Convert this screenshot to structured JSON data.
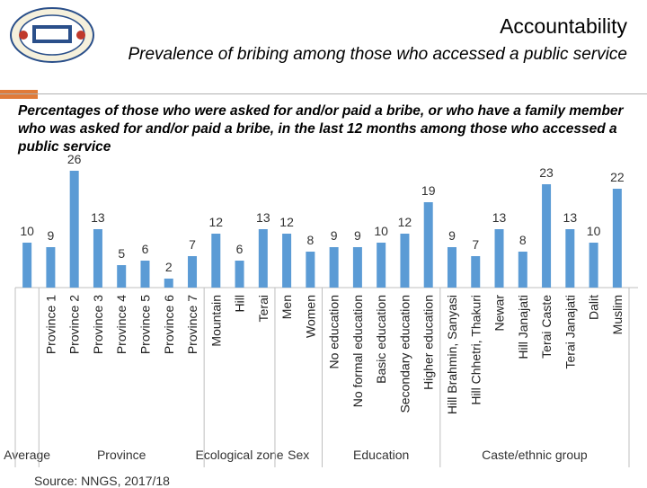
{
  "header": {
    "title": "Accountability",
    "subtitle": "Prevalence of bribing among those who accessed a public service"
  },
  "chart_caption": "Percentages of those who were asked for and/or paid a bribe, or who have a family member who was asked for and/or paid a bribe, in the last 12 months among those who accessed a public service",
  "source": "Source: NNGS, 2017/18",
  "colors": {
    "bar": "#5b9bd5",
    "accent": "#e07b39",
    "grid": "#bfbfbf"
  },
  "chart_data": {
    "type": "bar",
    "ylim": [
      0,
      30
    ],
    "categories": [
      "Average",
      "Province 1",
      "Province 2",
      "Province 3",
      "Province 4",
      "Province 5",
      "Province 6",
      "Province 7",
      "Mountain",
      "Hill",
      "Terai",
      "Men",
      "Women",
      "No education",
      "No formal education",
      "Basic education",
      "Secondary education",
      "Higher education",
      "Hill Brahmin, Sanyasi",
      "Hill Chhetri, Thakuri",
      "Newar",
      "Hill Janajati",
      "Terai Caste",
      "Terai Janajati",
      "Dalit",
      "Muslim"
    ],
    "series": [
      {
        "values": [
          10,
          9,
          26,
          13,
          5,
          6,
          2,
          7,
          12,
          6,
          13,
          12,
          8,
          9,
          9,
          10,
          12,
          19,
          9,
          7,
          13,
          8,
          23,
          13,
          10,
          22
        ]
      }
    ],
    "groups": [
      {
        "label": "Average",
        "start": 0,
        "end": 0
      },
      {
        "label": "Province",
        "start": 1,
        "end": 7
      },
      {
        "label": "Ecological zone",
        "start": 8,
        "end": 10
      },
      {
        "label": "Sex",
        "start": 11,
        "end": 12
      },
      {
        "label": "Education",
        "start": 13,
        "end": 17
      },
      {
        "label": "Caste/ethnic group",
        "start": 18,
        "end": 25
      }
    ]
  }
}
